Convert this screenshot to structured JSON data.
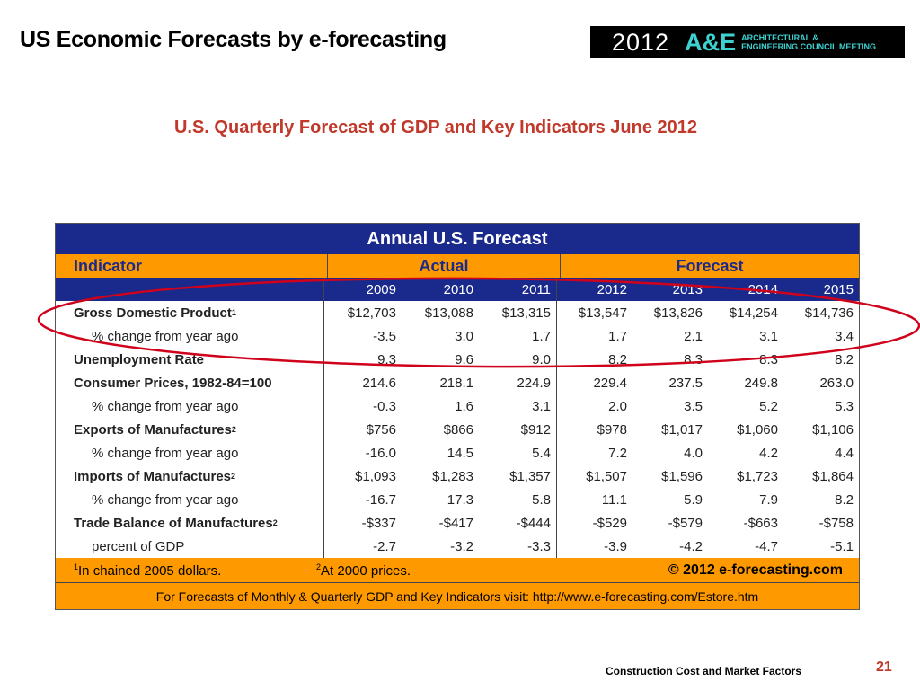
{
  "slide": {
    "title": "US Economic Forecasts by e-forecasting",
    "subtitle": "U.S. Quarterly Forecast of GDP and Key Indicators June 2012",
    "footer": "Construction Cost and Market Factors",
    "page_number": "21"
  },
  "logo": {
    "year": "2012",
    "brand": "A&E",
    "line1": "ARCHITECTURAL &",
    "line2": "ENGINEERING COUNCIL MEETING"
  },
  "table": {
    "title": "Annual U.S. Forecast",
    "headers": {
      "indicator": "Indicator",
      "actual": "Actual",
      "forecast": "Forecast"
    },
    "years": [
      "2009",
      "2010",
      "2011",
      "2012",
      "2013",
      "2014",
      "2015"
    ],
    "rows": [
      {
        "label": "Gross Domestic Product",
        "sup": "1",
        "type": "main",
        "values": [
          "$12,703",
          "$13,088",
          "$13,315",
          "$13,547",
          "$13,826",
          "$14,254",
          "$14,736"
        ]
      },
      {
        "label": "% change from year ago",
        "sup": "",
        "type": "sub",
        "values": [
          "-3.5",
          "3.0",
          "1.7",
          "1.7",
          "2.1",
          "3.1",
          "3.4"
        ]
      },
      {
        "label": "Unemployment Rate",
        "sup": "",
        "type": "main",
        "values": [
          "9.3",
          "9.6",
          "9.0",
          "8.2",
          "8.3",
          "8.3",
          "8.2"
        ]
      },
      {
        "label": "Consumer Prices, 1982-84=100",
        "sup": "",
        "type": "main",
        "values": [
          "214.6",
          "218.1",
          "224.9",
          "229.4",
          "237.5",
          "249.8",
          "263.0"
        ]
      },
      {
        "label": "% change from year ago",
        "sup": "",
        "type": "sub",
        "values": [
          "-0.3",
          "1.6",
          "3.1",
          "2.0",
          "3.5",
          "5.2",
          "5.3"
        ]
      },
      {
        "label": "Exports of Manufactures",
        "sup": "2",
        "type": "main",
        "values": [
          "$756",
          "$866",
          "$912",
          "$978",
          "$1,017",
          "$1,060",
          "$1,106"
        ]
      },
      {
        "label": "% change from year ago",
        "sup": "",
        "type": "sub",
        "values": [
          "-16.0",
          "14.5",
          "5.4",
          "7.2",
          "4.0",
          "4.2",
          "4.4"
        ]
      },
      {
        "label": "Imports of Manufactures",
        "sup": "2",
        "type": "main",
        "values": [
          "$1,093",
          "$1,283",
          "$1,357",
          "$1,507",
          "$1,596",
          "$1,723",
          "$1,864"
        ]
      },
      {
        "label": "% change from year ago",
        "sup": "",
        "type": "sub",
        "values": [
          "-16.7",
          "17.3",
          "5.8",
          "11.1",
          "5.9",
          "7.9",
          "8.2"
        ]
      },
      {
        "label": "Trade Balance of Manufactures",
        "sup": "2",
        "type": "main",
        "values": [
          "-$337",
          "-$417",
          "-$444",
          "-$529",
          "-$579",
          "-$663",
          "-$758"
        ]
      },
      {
        "label": "percent of GDP",
        "sup": "",
        "type": "sub",
        "values": [
          "-2.7",
          "-3.2",
          "-3.3",
          "-3.9",
          "-4.2",
          "-4.7",
          "-5.1"
        ]
      }
    ],
    "footnote1": {
      "sup": "1",
      "text": "In chained 2005 dollars."
    },
    "footnote2": {
      "sup": "2",
      "text": "At 2000 prices."
    },
    "copyright": "© 2012 e-forecasting.com",
    "link_text": "For Forecasts of Monthly & Quarterly GDP and Key Indicators visit: http://www.e-forecasting.com/Estore.htm"
  },
  "colors": {
    "navy": "#1a2a8c",
    "orange": "#ff9900",
    "title_red": "#c0392b",
    "highlight_ellipse": "#d0021b"
  }
}
